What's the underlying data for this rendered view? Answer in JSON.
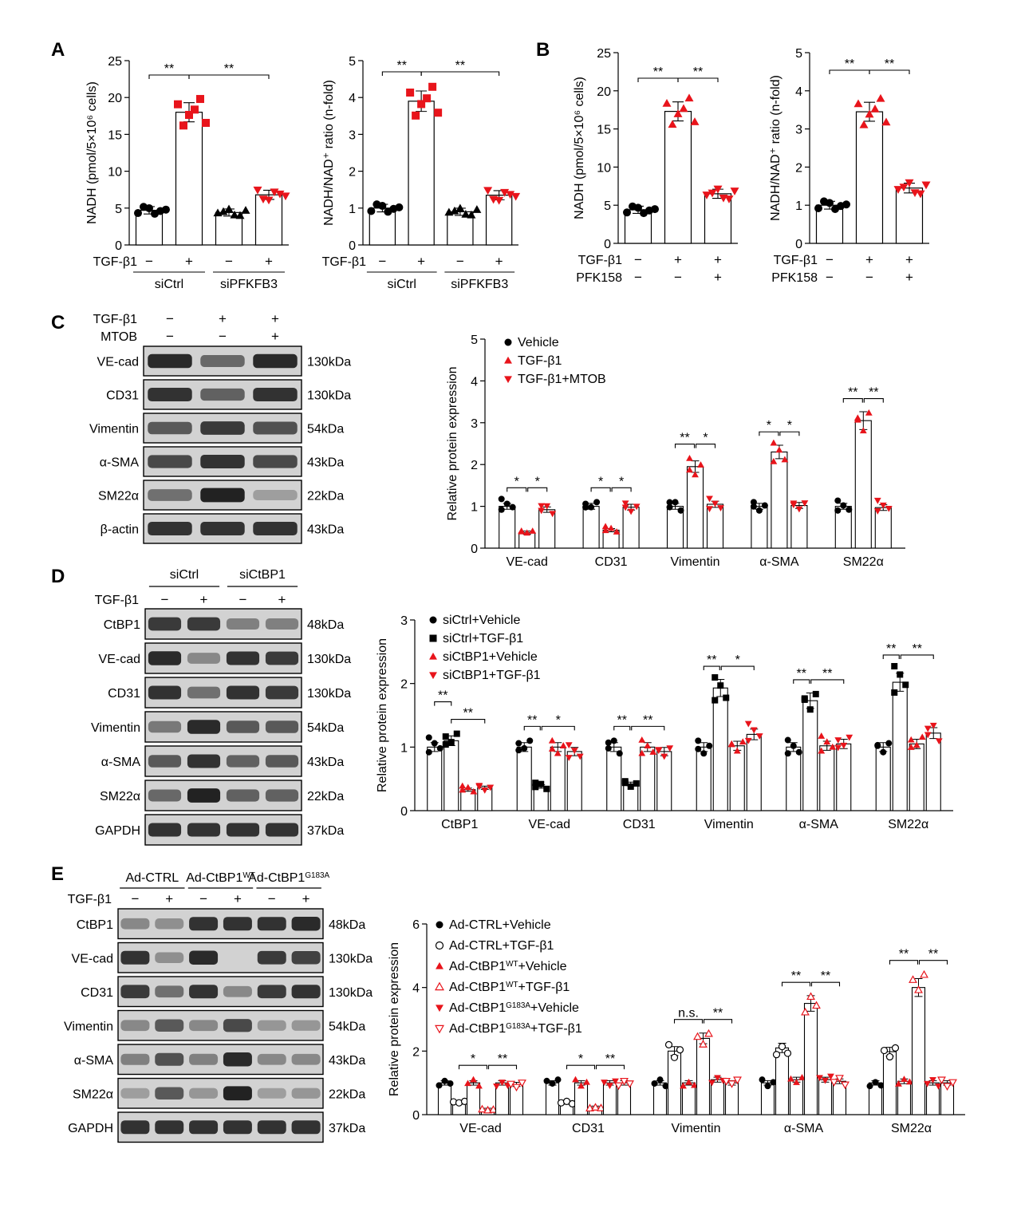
{
  "colors": {
    "black": "#000000",
    "red": "#e8141b",
    "band": "#1a1a1a",
    "blot_bg": "#dcdcdc"
  },
  "panels": {
    "A": "A",
    "B": "B",
    "C": "C",
    "D": "D",
    "E": "E"
  },
  "common": {
    "tgf": "TGF-β1",
    "plus": "+",
    "minus": "−"
  },
  "chart_data": [
    {
      "id": "A1",
      "type": "bar",
      "ylabel": "NADH (pmol/5×10⁶ cells)",
      "ylim": [
        0,
        25
      ],
      "yticks": [
        0,
        5,
        10,
        15,
        20,
        25
      ],
      "bars": [
        {
          "value": 4.7,
          "color": "#000000",
          "marker": "circle"
        },
        {
          "value": 18.0,
          "color": "#e8141b",
          "marker": "square"
        },
        {
          "value": 4.4,
          "color": "#000000",
          "marker": "triangle"
        },
        {
          "value": 6.8,
          "color": "#e8141b",
          "marker": "tri-down"
        }
      ],
      "sig": [
        {
          "from": 0,
          "to": 1,
          "text": "**"
        },
        {
          "from": 1,
          "to": 3,
          "text": "**"
        }
      ],
      "conditions": [
        {
          "label": "TGF-β1",
          "values": [
            "-",
            "+",
            "-",
            "+"
          ]
        }
      ],
      "groups": [
        {
          "label": "siCtrl",
          "from": 0,
          "to": 1
        },
        {
          "label": "siPFKFB3",
          "from": 2,
          "to": 3
        }
      ]
    },
    {
      "id": "A2",
      "type": "bar",
      "ylabel": "NADH/NAD⁺ ratio (n-fold)",
      "ylim": [
        0,
        5
      ],
      "yticks": [
        0,
        1,
        2,
        3,
        4,
        5
      ],
      "bars": [
        {
          "value": 1.0,
          "color": "#000000",
          "marker": "circle"
        },
        {
          "value": 3.9,
          "color": "#e8141b",
          "marker": "square"
        },
        {
          "value": 0.9,
          "color": "#000000",
          "marker": "triangle"
        },
        {
          "value": 1.35,
          "color": "#e8141b",
          "marker": "tri-down"
        }
      ],
      "sig": [
        {
          "from": 0,
          "to": 1,
          "text": "**"
        },
        {
          "from": 1,
          "to": 3,
          "text": "**"
        }
      ],
      "conditions": [
        {
          "label": "TGF-β1",
          "values": [
            "-",
            "+",
            "-",
            "+"
          ]
        }
      ],
      "groups": [
        {
          "label": "siCtrl",
          "from": 0,
          "to": 1
        },
        {
          "label": "siPFKFB3",
          "from": 2,
          "to": 3
        }
      ]
    },
    {
      "id": "B1",
      "type": "bar",
      "ylabel": "NADH (pmol/5×10⁶ cells)",
      "ylim": [
        0,
        25
      ],
      "yticks": [
        0,
        5,
        10,
        15,
        20,
        25
      ],
      "bars": [
        {
          "value": 4.4,
          "color": "#000000",
          "marker": "circle"
        },
        {
          "value": 17.3,
          "color": "#e8141b",
          "marker": "triangle"
        },
        {
          "value": 6.5,
          "color": "#e8141b",
          "marker": "tri-down"
        }
      ],
      "sig": [
        {
          "from": 0,
          "to": 1,
          "text": "**"
        },
        {
          "from": 1,
          "to": 2,
          "text": "**"
        }
      ],
      "conditions": [
        {
          "label": "TGF-β1",
          "values": [
            "-",
            "+",
            "+"
          ]
        },
        {
          "label": "PFK158",
          "values": [
            "-",
            "-",
            "+"
          ]
        }
      ],
      "groups": []
    },
    {
      "id": "B2",
      "type": "bar",
      "ylabel": "NADH/NAD⁺ ratio (n-fold)",
      "ylim": [
        0,
        5
      ],
      "yticks": [
        0,
        1,
        2,
        3,
        4,
        5
      ],
      "bars": [
        {
          "value": 1.0,
          "color": "#000000",
          "marker": "circle"
        },
        {
          "value": 3.45,
          "color": "#e8141b",
          "marker": "triangle"
        },
        {
          "value": 1.45,
          "color": "#e8141b",
          "marker": "tri-down"
        }
      ],
      "sig": [
        {
          "from": 0,
          "to": 1,
          "text": "**"
        },
        {
          "from": 1,
          "to": 2,
          "text": "**"
        }
      ],
      "conditions": [
        {
          "label": "TGF-β1",
          "values": [
            "-",
            "+",
            "+"
          ]
        },
        {
          "label": "PFK158",
          "values": [
            "-",
            "-",
            "+"
          ]
        }
      ],
      "groups": []
    },
    {
      "id": "C",
      "type": "bar",
      "ylabel": "Relative protein expression",
      "ylim": [
        0,
        5
      ],
      "yticks": [
        0,
        1,
        2,
        3,
        4,
        5
      ],
      "categories": [
        "VE-cad",
        "CD31",
        "Vimentin",
        "α-SMA",
        "SM22α"
      ],
      "series": [
        {
          "name": "Vehicle",
          "color": "#000000",
          "marker": "circle",
          "values": [
            1.0,
            1.0,
            1.0,
            1.0,
            1.0
          ]
        },
        {
          "name": "TGF-β1",
          "color": "#e8141b",
          "marker": "triangle",
          "values": [
            0.37,
            0.43,
            1.95,
            2.3,
            3.05
          ]
        },
        {
          "name": "TGF-β1+MTOB",
          "color": "#e8141b",
          "marker": "tri-down",
          "values": [
            0.92,
            0.98,
            1.05,
            1.02,
            0.97
          ]
        }
      ],
      "sig": [
        [
          "*",
          "*"
        ],
        [
          "*",
          "*"
        ],
        [
          "**",
          "*"
        ],
        [
          "*",
          "*"
        ],
        [
          "**",
          "**"
        ]
      ]
    },
    {
      "id": "D",
      "type": "bar",
      "ylabel": "Relative protein expression",
      "ylim": [
        0,
        3
      ],
      "yticks": [
        0,
        1,
        2,
        3
      ],
      "categories": [
        "CtBP1",
        "VE-cad",
        "CD31",
        "Vimentin",
        "α-SMA",
        "SM22α"
      ],
      "series": [
        {
          "name": "siCtrl+Vehicle",
          "color": "#000000",
          "marker": "circle",
          "values": [
            1.0,
            1.0,
            1.0,
            1.0,
            1.0,
            1.0
          ]
        },
        {
          "name": "siCtrl+TGF-β1",
          "color": "#000000",
          "marker": "square",
          "values": [
            1.1,
            0.38,
            0.42,
            1.93,
            1.73,
            2.02
          ]
        },
        {
          "name": "siCtBP1+Vehicle",
          "color": "#e8141b",
          "marker": "triangle",
          "values": [
            0.33,
            1.0,
            1.0,
            1.02,
            1.02,
            1.05
          ]
        },
        {
          "name": "siCtBP1+TGF-β1",
          "color": "#e8141b",
          "marker": "tri-down",
          "values": [
            0.36,
            0.93,
            0.93,
            1.2,
            1.05,
            1.22
          ]
        }
      ],
      "sig": [
        [
          "**",
          "**"
        ],
        [
          "**",
          "*"
        ],
        [
          "**",
          "**"
        ],
        [
          "**",
          "*"
        ],
        [
          "**",
          "**"
        ],
        [
          "**",
          "**"
        ]
      ]
    },
    {
      "id": "E",
      "type": "bar",
      "ylabel": "Relative protein expression",
      "ylim": [
        0,
        6
      ],
      "yticks": [
        0,
        2,
        4,
        6
      ],
      "categories": [
        "VE-cad",
        "CD31",
        "Vimentin",
        "α-SMA",
        "SM22α"
      ],
      "series": [
        {
          "name": "Ad-CTRL+Vehicle",
          "color": "#000000",
          "marker": "circle",
          "fill": true,
          "values": [
            1.0,
            1.0,
            1.0,
            1.0,
            1.0
          ]
        },
        {
          "name": "Ad-CTRL+TGF-β1",
          "color": "#000000",
          "marker": "circle",
          "fill": false,
          "values": [
            0.38,
            0.38,
            2.0,
            2.1,
            1.98
          ]
        },
        {
          "name": "Ad-CtBP1WT+Vehicle",
          "nameBase": "Ad-CtBP1",
          "nameSup": "WT",
          "nameTail": "+Vehicle",
          "color": "#e8141b",
          "marker": "triangle",
          "fill": true,
          "values": [
            1.0,
            1.0,
            1.0,
            1.1,
            1.05
          ]
        },
        {
          "name": "Ad-CtBP1WT+TGF-β1",
          "nameBase": "Ad-CtBP1",
          "nameSup": "WT",
          "nameTail": "+TGF-β1",
          "color": "#e8141b",
          "marker": "triangle",
          "fill": false,
          "values": [
            0.15,
            0.22,
            2.4,
            3.5,
            4.0
          ]
        },
        {
          "name": "Ad-CtBP1G183A+Vehicle",
          "nameBase": "Ad-CtBP1",
          "nameSup": "G183A",
          "nameTail": "+Vehicle",
          "color": "#e8141b",
          "marker": "tri-down",
          "fill": true,
          "values": [
            1.0,
            1.0,
            1.1,
            1.1,
            1.0
          ]
        },
        {
          "name": "Ad-CtBP1G183A+TGF-β1",
          "nameBase": "Ad-CtBP1",
          "nameSup": "G183A",
          "nameTail": "+TGF-β1",
          "color": "#e8141b",
          "marker": "tri-down",
          "fill": false,
          "values": [
            0.95,
            1.0,
            1.0,
            1.05,
            1.0
          ]
        }
      ],
      "sig": [
        [
          "",
          "*",
          "**"
        ],
        [
          "",
          "*",
          "**"
        ],
        [
          "",
          "n.s.",
          "**"
        ],
        [
          "",
          "**",
          "**"
        ],
        [
          "",
          "**",
          "**"
        ]
      ]
    }
  ],
  "blots": {
    "C": {
      "header": [
        {
          "label": "TGF-β1",
          "values": [
            "-",
            "+",
            "+"
          ]
        },
        {
          "label": "MTOB",
          "values": [
            "-",
            "-",
            "+"
          ]
        }
      ],
      "rows": [
        {
          "name": "VE-cad",
          "kda": "130kDa",
          "bands": [
            0.9,
            0.5,
            0.9
          ]
        },
        {
          "name": "CD31",
          "kda": "130kDa",
          "bands": [
            0.85,
            0.55,
            0.85
          ]
        },
        {
          "name": "Vimentin",
          "kda": "54kDa",
          "bands": [
            0.6,
            0.8,
            0.65
          ]
        },
        {
          "name": "α-SMA",
          "kda": "43kDa",
          "bands": [
            0.7,
            0.85,
            0.7
          ]
        },
        {
          "name": "SM22α",
          "kda": "22kDa",
          "bands": [
            0.45,
            0.95,
            0.15
          ]
        },
        {
          "name": "β-actin",
          "kda": "43kDa",
          "bands": [
            0.85,
            0.85,
            0.85
          ]
        }
      ]
    },
    "D": {
      "groups": [
        "siCtrl",
        "siCtBP1"
      ],
      "header": [
        {
          "label": "TGF-β1",
          "values": [
            "-",
            "+",
            "-",
            "+"
          ]
        }
      ],
      "rows": [
        {
          "name": "CtBP1",
          "kda": "48kDa",
          "bands": [
            0.8,
            0.8,
            0.35,
            0.35
          ]
        },
        {
          "name": "VE-cad",
          "kda": "130kDa",
          "bands": [
            0.9,
            0.3,
            0.85,
            0.8
          ]
        },
        {
          "name": "CD31",
          "kda": "130kDa",
          "bands": [
            0.85,
            0.45,
            0.85,
            0.8
          ]
        },
        {
          "name": "Vimentin",
          "kda": "54kDa",
          "bands": [
            0.4,
            0.9,
            0.6,
            0.6
          ]
        },
        {
          "name": "α-SMA",
          "kda": "43kDa",
          "bands": [
            0.6,
            0.85,
            0.55,
            0.6
          ]
        },
        {
          "name": "SM22α",
          "kda": "22kDa",
          "bands": [
            0.5,
            0.95,
            0.55,
            0.55
          ]
        },
        {
          "name": "GAPDH",
          "kda": "37kDa",
          "bands": [
            0.85,
            0.85,
            0.85,
            0.85
          ]
        }
      ]
    },
    "E": {
      "groups": [
        {
          "base": "Ad-CTRL",
          "sup": ""
        },
        {
          "base": "Ad-CtBP1",
          "sup": "WT"
        },
        {
          "base": "Ad-CtBP1",
          "sup": "G183A"
        }
      ],
      "header": [
        {
          "label": "TGF-β1",
          "values": [
            "-",
            "+",
            "-",
            "+",
            "-",
            "+"
          ]
        }
      ],
      "rows": [
        {
          "name": "CtBP1",
          "kda": "48kDa",
          "bands": [
            0.3,
            0.25,
            0.85,
            0.85,
            0.85,
            0.9
          ]
        },
        {
          "name": "VE-cad",
          "kda": "130kDa",
          "bands": [
            0.85,
            0.25,
            0.9,
            0.0,
            0.8,
            0.75
          ]
        },
        {
          "name": "CD31",
          "kda": "130kDa",
          "bands": [
            0.8,
            0.45,
            0.85,
            0.3,
            0.8,
            0.85
          ]
        },
        {
          "name": "Vimentin",
          "kda": "54kDa",
          "bands": [
            0.3,
            0.6,
            0.3,
            0.7,
            0.2,
            0.2
          ]
        },
        {
          "name": "α-SMA",
          "kda": "43kDa",
          "bands": [
            0.35,
            0.65,
            0.35,
            0.9,
            0.3,
            0.3
          ]
        },
        {
          "name": "SM22α",
          "kda": "22kDa",
          "bands": [
            0.15,
            0.6,
            0.2,
            0.95,
            0.15,
            0.2
          ]
        },
        {
          "name": "GAPDH",
          "kda": "37kDa",
          "bands": [
            0.85,
            0.85,
            0.85,
            0.85,
            0.85,
            0.85
          ]
        }
      ]
    }
  }
}
